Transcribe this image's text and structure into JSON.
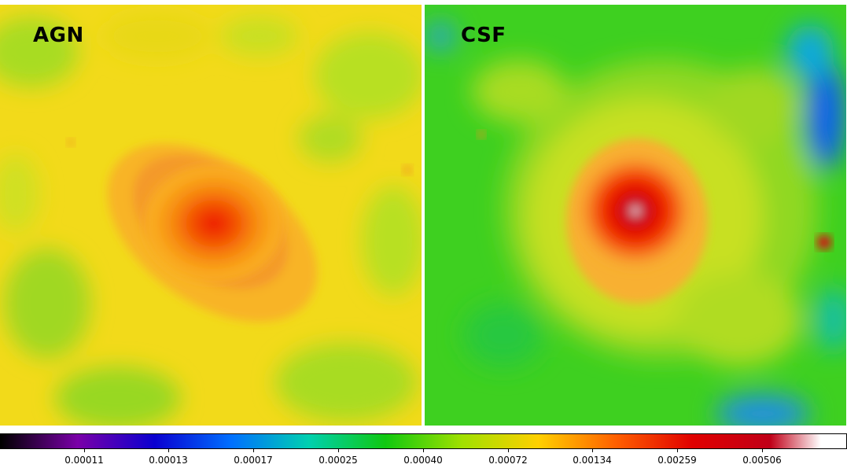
{
  "panels": [
    {
      "label": "AGN"
    },
    {
      "label": "CSF"
    }
  ],
  "colorbar": {
    "tick_labels": [
      "0.00011",
      "0.00013",
      "0.00017",
      "0.00025",
      "0.00040",
      "0.00072",
      "0.00134",
      "0.00259",
      "0.00506"
    ],
    "colormap_stops": [
      "#000000",
      "#7a00a8",
      "#0a00d0",
      "#0070ff",
      "#00d0b0",
      "#10c810",
      "#a0e000",
      "#ffd000",
      "#ff6000",
      "#e00000",
      "#c00018",
      "#ffffff"
    ]
  }
}
